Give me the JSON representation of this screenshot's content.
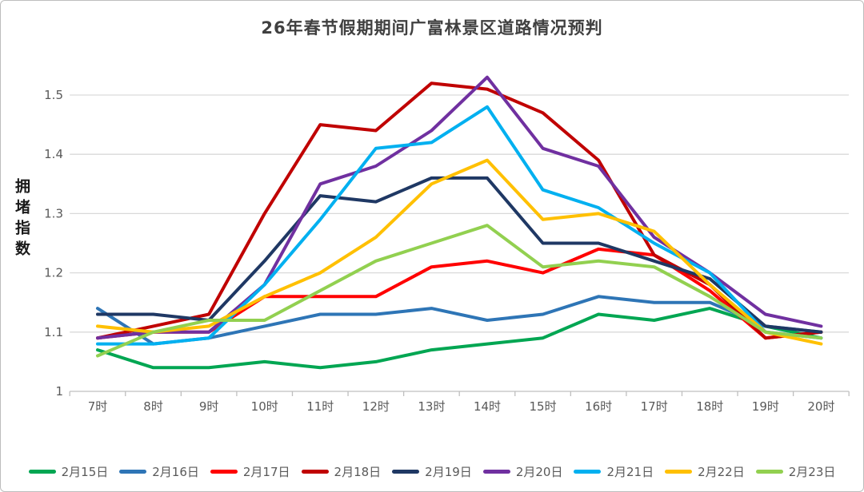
{
  "page": {
    "background": "#FFFFFF",
    "border_color": "#BDBDBD"
  },
  "chart_data": {
    "type": "line",
    "title": "26年春节假期期间广富林景区道路情况预判",
    "ylabel": "拥堵指数",
    "xlabel": "",
    "categories": [
      "7时",
      "8时",
      "9时",
      "10时",
      "11时",
      "12时",
      "13时",
      "14时",
      "15时",
      "16时",
      "17时",
      "18时",
      "19时",
      "20时"
    ],
    "y_ticks": [
      "1",
      "1.1",
      "1.2",
      "1.3",
      "1.4",
      "1.5"
    ],
    "ylim": [
      1,
      1.56
    ],
    "grid": true,
    "legend_position": "bottom",
    "styles": {
      "grid_color": "#D9D9D9",
      "axis_color": "#BFBFBF",
      "tick_label_color": "#595959",
      "title_color": "#404040",
      "line_width": 4
    },
    "series": [
      {
        "name": "2月15日",
        "color": "#00A652",
        "values": [
          1.07,
          1.04,
          1.04,
          1.05,
          1.04,
          1.05,
          1.07,
          1.08,
          1.09,
          1.13,
          1.12,
          1.14,
          1.11,
          1.09
        ]
      },
      {
        "name": "2月16日",
        "color": "#2E75B6",
        "values": [
          1.14,
          1.08,
          1.09,
          1.11,
          1.13,
          1.13,
          1.14,
          1.12,
          1.13,
          1.16,
          1.15,
          1.15,
          1.11,
          1.1
        ]
      },
      {
        "name": "2月17日",
        "color": "#FF0000",
        "values": [
          1.09,
          1.1,
          1.1,
          1.16,
          1.16,
          1.16,
          1.21,
          1.22,
          1.2,
          1.24,
          1.23,
          1.17,
          1.09,
          1.1
        ]
      },
      {
        "name": "2月18日",
        "color": "#C00000",
        "values": [
          1.09,
          1.11,
          1.13,
          1.3,
          1.45,
          1.44,
          1.52,
          1.51,
          1.47,
          1.39,
          1.23,
          1.18,
          1.09,
          1.1
        ]
      },
      {
        "name": "2月19日",
        "color": "#1F3864",
        "values": [
          1.13,
          1.13,
          1.12,
          1.22,
          1.33,
          1.32,
          1.36,
          1.36,
          1.25,
          1.25,
          1.22,
          1.19,
          1.11,
          1.1
        ]
      },
      {
        "name": "2月20日",
        "color": "#7030A0",
        "values": [
          1.09,
          1.1,
          1.1,
          1.18,
          1.35,
          1.38,
          1.44,
          1.53,
          1.41,
          1.38,
          1.26,
          1.2,
          1.13,
          1.11
        ]
      },
      {
        "name": "2月21日",
        "color": "#00B0F0",
        "values": [
          1.08,
          1.08,
          1.09,
          1.18,
          1.29,
          1.41,
          1.42,
          1.48,
          1.34,
          1.31,
          1.25,
          1.2,
          1.1,
          1.09
        ]
      },
      {
        "name": "2月22日",
        "color": "#FFC000",
        "values": [
          1.11,
          1.1,
          1.11,
          1.16,
          1.2,
          1.26,
          1.35,
          1.39,
          1.29,
          1.3,
          1.27,
          1.18,
          1.1,
          1.08
        ]
      },
      {
        "name": "2月23日",
        "color": "#92D050",
        "values": [
          1.06,
          1.1,
          1.12,
          1.12,
          1.17,
          1.22,
          1.25,
          1.28,
          1.21,
          1.22,
          1.21,
          1.16,
          1.1,
          1.09
        ]
      }
    ]
  }
}
